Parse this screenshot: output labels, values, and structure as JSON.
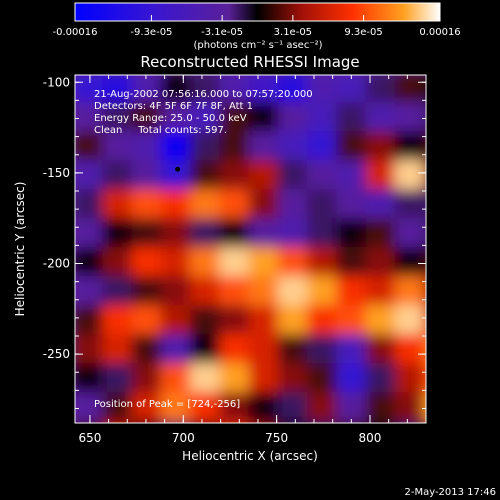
{
  "chart_data": {
    "type": "heatmap",
    "title": "Reconstructed RHESSI Image",
    "xlabel": "Heliocentric X (arcsec)",
    "ylabel": "Heliocentric Y (arcsec)",
    "xlim": [
      642,
      830
    ],
    "ylim": [
      -288,
      -96
    ],
    "x_ticks": [
      {
        "value": 650,
        "label": "650"
      },
      {
        "value": 700,
        "label": "700"
      },
      {
        "value": 750,
        "label": "750"
      },
      {
        "value": 800,
        "label": "800"
      }
    ],
    "y_ticks": [
      {
        "value": -100,
        "label": "-100"
      },
      {
        "value": -150,
        "label": "-150"
      },
      {
        "value": -200,
        "label": "-200"
      },
      {
        "value": -250,
        "label": "-250"
      }
    ],
    "colorbar": {
      "min": -0.00016,
      "max": 0.00016,
      "tick_labels": [
        "-0.00016",
        "-9.3e-05",
        "-3.1e-05",
        "3.1e-05",
        "9.3e-05",
        "0.00016"
      ],
      "tick_values": [
        -0.00016,
        -9.3e-05,
        -3.1e-05,
        3.1e-05,
        9.3e-05,
        0.00016
      ],
      "unit_label": "(photons cm⁻² s⁻¹ asec⁻²)"
    },
    "annotations": {
      "time_range": "21-Aug-2002 07:56:16.000 to 07:57:20.000",
      "detectors": "Detectors: 4F 5F 6F 7F 8F, Att 1",
      "energy": "Energy Range: 25.0 - 50.0 keV",
      "method": "Clean     Total counts: 597.",
      "peak": "Position of Peak = [724,-256]"
    },
    "intensity_grid": {
      "x_start": 642,
      "x_step": 15.67,
      "y_start": -96,
      "y_step": -16,
      "rows": [
        [
          0.2,
          0.15,
          0.35,
          0.5,
          0.45,
          0.35,
          0.25,
          0.15,
          0.35,
          0.3,
          0.45,
          0.55,
          0.5
        ],
        [
          0.4,
          0.45,
          0.55,
          0.4,
          0.3,
          0.55,
          0.5,
          0.4,
          0.3,
          0.45,
          0.35,
          0.4,
          0.45
        ],
        [
          0.55,
          0.4,
          0.35,
          0.05,
          0.45,
          0.55,
          0.4,
          0.3,
          0.2,
          0.55,
          0.6,
          0.5,
          0.55
        ],
        [
          0.35,
          0.45,
          0.4,
          0.2,
          0.55,
          0.6,
          0.65,
          0.45,
          0.4,
          0.35,
          0.7,
          0.95,
          0.6
        ],
        [
          0.45,
          0.7,
          0.8,
          0.75,
          0.85,
          0.8,
          0.6,
          0.4,
          0.45,
          0.4,
          0.35,
          0.45,
          0.45
        ],
        [
          0.4,
          0.5,
          0.55,
          0.6,
          0.45,
          0.5,
          0.4,
          0.35,
          0.45,
          0.5,
          0.55,
          0.4,
          0.45
        ],
        [
          0.5,
          0.6,
          0.75,
          0.7,
          0.85,
          0.95,
          0.9,
          0.8,
          0.65,
          0.55,
          0.6,
          0.5,
          0.55
        ],
        [
          0.4,
          0.45,
          0.55,
          0.6,
          0.7,
          0.8,
          0.85,
          0.95,
          0.9,
          0.75,
          0.7,
          0.85,
          0.65
        ],
        [
          0.55,
          0.75,
          0.8,
          0.65,
          0.55,
          0.6,
          0.7,
          0.9,
          0.75,
          0.8,
          0.9,
          0.95,
          0.7
        ],
        [
          0.6,
          0.7,
          0.55,
          0.35,
          0.5,
          0.75,
          0.7,
          0.55,
          0.45,
          0.3,
          0.6,
          0.75,
          0.85
        ],
        [
          0.5,
          0.45,
          0.6,
          0.8,
          0.95,
          0.9,
          0.7,
          0.6,
          0.55,
          0.2,
          0.45,
          0.65,
          0.8
        ],
        [
          0.4,
          0.55,
          0.7,
          0.85,
          0.75,
          0.6,
          0.5,
          0.45,
          0.6,
          0.4,
          0.55,
          0.6,
          0.9
        ],
        [
          0.55,
          0.65,
          0.5,
          0.45,
          0.55,
          0.7,
          0.6,
          0.5,
          0.45,
          0.55,
          0.5,
          0.45,
          0.6
        ]
      ]
    }
  },
  "footer": {
    "timestamp": "2-May-2013 17:46"
  }
}
